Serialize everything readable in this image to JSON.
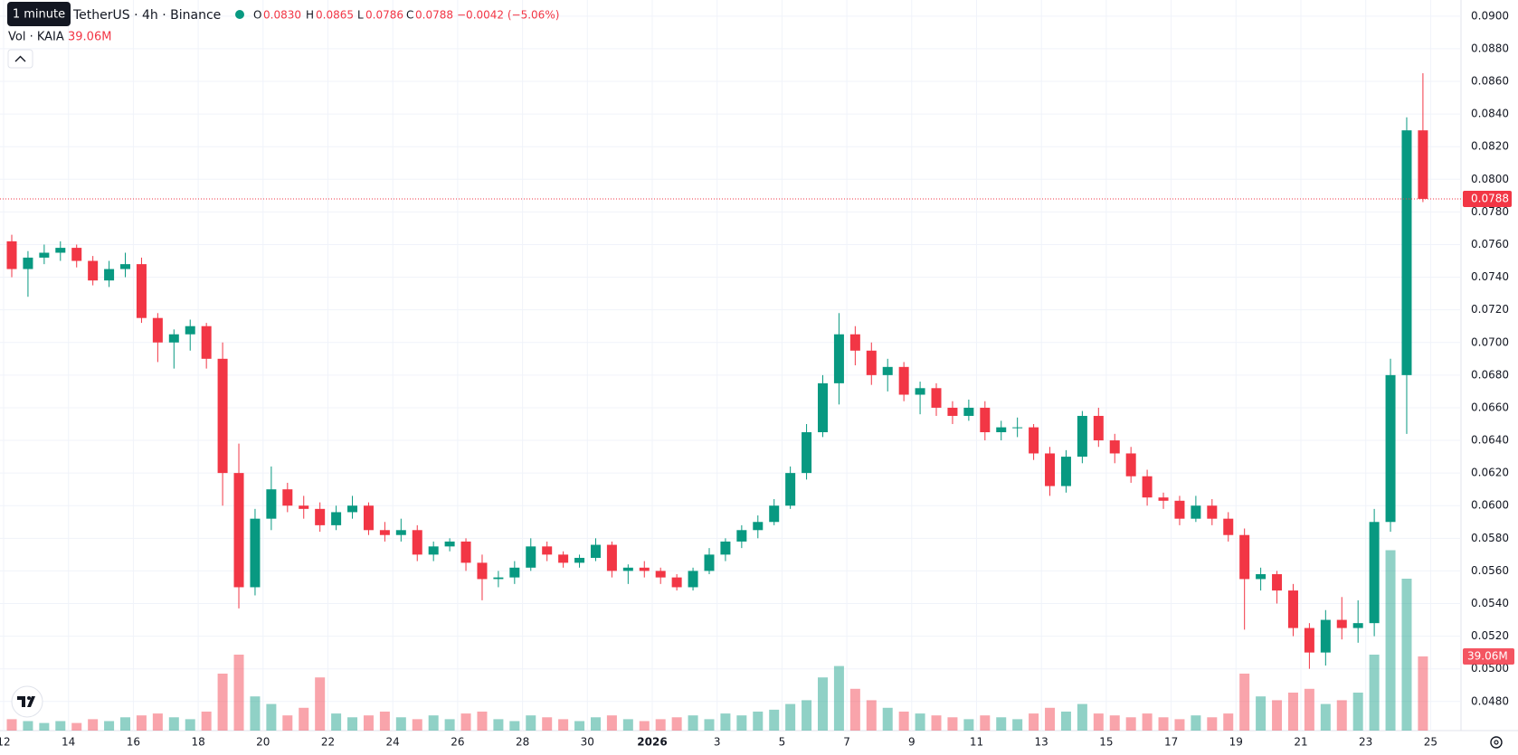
{
  "chart_data": {
    "type": "candlestick",
    "symbol": "TetherUS · 4h · Binance",
    "tooltip": "1 minute",
    "legend": {
      "o_label": "O",
      "open": "0.0830",
      "h_label": "H",
      "high": "0.0865",
      "l_label": "L",
      "low": "0.0786",
      "c_label": "C",
      "close": "0.0788",
      "change": "−0.0042 (−5.06%)"
    },
    "volume_title": "Vol · KAIA",
    "volume_last_label": "39.06M",
    "up_color": "#089981",
    "down_color": "#f23645",
    "ylim": [
      0.0476,
      0.0906
    ],
    "yticks": [
      {
        "value": 0.09,
        "label": "0.0900"
      },
      {
        "value": 0.088,
        "label": "0.0880"
      },
      {
        "value": 0.086,
        "label": "0.0860"
      },
      {
        "value": 0.084,
        "label": "0.0840"
      },
      {
        "value": 0.082,
        "label": "0.0820"
      },
      {
        "value": 0.08,
        "label": "0.0800"
      },
      {
        "value": 0.078,
        "label": "0.0780"
      },
      {
        "value": 0.076,
        "label": "0.0760"
      },
      {
        "value": 0.074,
        "label": "0.0740"
      },
      {
        "value": 0.072,
        "label": "0.0720"
      },
      {
        "value": 0.07,
        "label": "0.0700"
      },
      {
        "value": 0.068,
        "label": "0.0680"
      },
      {
        "value": 0.066,
        "label": "0.0660"
      },
      {
        "value": 0.064,
        "label": "0.0640"
      },
      {
        "value": 0.062,
        "label": "0.0620"
      },
      {
        "value": 0.06,
        "label": "0.0600"
      },
      {
        "value": 0.058,
        "label": "0.0580"
      },
      {
        "value": 0.056,
        "label": "0.0560"
      },
      {
        "value": 0.054,
        "label": "0.0540"
      },
      {
        "value": 0.052,
        "label": "0.0520"
      },
      {
        "value": 0.05,
        "label": "0.0500"
      },
      {
        "value": 0.048,
        "label": "0.0480"
      }
    ],
    "xticks": [
      {
        "value": "2025-12-12",
        "label": "12"
      },
      {
        "value": "2025-12-14",
        "label": "14"
      },
      {
        "value": "2025-12-16",
        "label": "16"
      },
      {
        "value": "2025-12-18",
        "label": "18"
      },
      {
        "value": "2025-12-20",
        "label": "20"
      },
      {
        "value": "2025-12-22",
        "label": "22"
      },
      {
        "value": "2025-12-24",
        "label": "24"
      },
      {
        "value": "2025-12-26",
        "label": "26"
      },
      {
        "value": "2025-12-28",
        "label": "28"
      },
      {
        "value": "2025-12-30",
        "label": "30"
      },
      {
        "value": "2026-01-01",
        "label": "2026"
      },
      {
        "value": "2026-01-03",
        "label": "3"
      },
      {
        "value": "2026-01-05",
        "label": "5"
      },
      {
        "value": "2026-01-07",
        "label": "7"
      },
      {
        "value": "2026-01-09",
        "label": "9"
      },
      {
        "value": "2026-01-11",
        "label": "11"
      },
      {
        "value": "2026-01-13",
        "label": "13"
      },
      {
        "value": "2026-01-15",
        "label": "15"
      },
      {
        "value": "2026-01-17",
        "label": "17"
      },
      {
        "value": "2026-01-19",
        "label": "19"
      },
      {
        "value": "2026-01-21",
        "label": "21"
      },
      {
        "value": "2026-01-23",
        "label": "23"
      },
      {
        "value": "2026-01-25",
        "label": "25"
      }
    ],
    "grid": true,
    "candles": [
      [
        0.0762,
        0.0766,
        0.074,
        0.0745
      ],
      [
        0.0745,
        0.0756,
        0.0728,
        0.0752
      ],
      [
        0.0752,
        0.076,
        0.0748,
        0.0755
      ],
      [
        0.0755,
        0.0762,
        0.075,
        0.0758
      ],
      [
        0.0758,
        0.076,
        0.0746,
        0.075
      ],
      [
        0.075,
        0.0753,
        0.0735,
        0.0738
      ],
      [
        0.0738,
        0.075,
        0.0734,
        0.0745
      ],
      [
        0.0745,
        0.0755,
        0.074,
        0.0748
      ],
      [
        0.0748,
        0.0752,
        0.0712,
        0.0715
      ],
      [
        0.0715,
        0.0718,
        0.0688,
        0.07
      ],
      [
        0.07,
        0.0708,
        0.0684,
        0.0705
      ],
      [
        0.0705,
        0.0714,
        0.0695,
        0.071
      ],
      [
        0.071,
        0.0712,
        0.0684,
        0.069
      ],
      [
        0.069,
        0.07,
        0.06,
        0.062
      ],
      [
        0.062,
        0.0638,
        0.0537,
        0.055
      ],
      [
        0.055,
        0.0598,
        0.0545,
        0.0592
      ],
      [
        0.0592,
        0.0624,
        0.0585,
        0.061
      ],
      [
        0.061,
        0.0614,
        0.0596,
        0.06
      ],
      [
        0.06,
        0.0606,
        0.0592,
        0.0598
      ],
      [
        0.0598,
        0.0602,
        0.0584,
        0.0588
      ],
      [
        0.0588,
        0.06,
        0.0585,
        0.0596
      ],
      [
        0.0596,
        0.0606,
        0.0592,
        0.06
      ],
      [
        0.06,
        0.0602,
        0.0582,
        0.0585
      ],
      [
        0.0585,
        0.059,
        0.0578,
        0.0582
      ],
      [
        0.0582,
        0.0592,
        0.0578,
        0.0585
      ],
      [
        0.0585,
        0.0588,
        0.0566,
        0.057
      ],
      [
        0.057,
        0.0578,
        0.0566,
        0.0575
      ],
      [
        0.0575,
        0.058,
        0.0572,
        0.0578
      ],
      [
        0.0578,
        0.058,
        0.056,
        0.0565
      ],
      [
        0.0565,
        0.057,
        0.0542,
        0.0555
      ],
      [
        0.0555,
        0.056,
        0.055,
        0.0556
      ],
      [
        0.0556,
        0.0566,
        0.0552,
        0.0562
      ],
      [
        0.0562,
        0.058,
        0.056,
        0.0575
      ],
      [
        0.0575,
        0.0578,
        0.0566,
        0.057
      ],
      [
        0.057,
        0.0572,
        0.0562,
        0.0565
      ],
      [
        0.0565,
        0.057,
        0.0562,
        0.0568
      ],
      [
        0.0568,
        0.058,
        0.0566,
        0.0576
      ],
      [
        0.0576,
        0.0578,
        0.0556,
        0.056
      ],
      [
        0.056,
        0.0564,
        0.0552,
        0.0562
      ],
      [
        0.0562,
        0.0566,
        0.0556,
        0.056
      ],
      [
        0.056,
        0.0562,
        0.0552,
        0.0556
      ],
      [
        0.0556,
        0.0558,
        0.0548,
        0.055
      ],
      [
        0.055,
        0.0562,
        0.0548,
        0.056
      ],
      [
        0.056,
        0.0574,
        0.0558,
        0.057
      ],
      [
        0.057,
        0.058,
        0.0566,
        0.0578
      ],
      [
        0.0578,
        0.0588,
        0.0574,
        0.0585
      ],
      [
        0.0585,
        0.0594,
        0.058,
        0.059
      ],
      [
        0.059,
        0.0604,
        0.0588,
        0.06
      ],
      [
        0.06,
        0.0624,
        0.0598,
        0.062
      ],
      [
        0.062,
        0.065,
        0.0616,
        0.0645
      ],
      [
        0.0645,
        0.068,
        0.0642,
        0.0675
      ],
      [
        0.0675,
        0.0718,
        0.0662,
        0.0705
      ],
      [
        0.0705,
        0.071,
        0.0686,
        0.0695
      ],
      [
        0.0695,
        0.07,
        0.0674,
        0.068
      ],
      [
        0.068,
        0.069,
        0.067,
        0.0685
      ],
      [
        0.0685,
        0.0688,
        0.0664,
        0.0668
      ],
      [
        0.0668,
        0.0676,
        0.0656,
        0.0672
      ],
      [
        0.0672,
        0.0675,
        0.0655,
        0.066
      ],
      [
        0.066,
        0.0664,
        0.065,
        0.0655
      ],
      [
        0.0655,
        0.0665,
        0.0652,
        0.066
      ],
      [
        0.066,
        0.0664,
        0.064,
        0.0645
      ],
      [
        0.0645,
        0.0652,
        0.064,
        0.0648
      ],
      [
        0.0648,
        0.0654,
        0.0642,
        0.0648
      ],
      [
        0.0648,
        0.065,
        0.0628,
        0.0632
      ],
      [
        0.0632,
        0.0636,
        0.0606,
        0.0612
      ],
      [
        0.0612,
        0.0634,
        0.0608,
        0.063
      ],
      [
        0.063,
        0.0658,
        0.0626,
        0.0655
      ],
      [
        0.0655,
        0.066,
        0.0636,
        0.064
      ],
      [
        0.064,
        0.0644,
        0.0626,
        0.0632
      ],
      [
        0.0632,
        0.0636,
        0.0614,
        0.0618
      ],
      [
        0.0618,
        0.0622,
        0.06,
        0.0605
      ],
      [
        0.0605,
        0.0608,
        0.0598,
        0.0603
      ],
      [
        0.0603,
        0.0606,
        0.0588,
        0.0592
      ],
      [
        0.0592,
        0.0606,
        0.059,
        0.06
      ],
      [
        0.06,
        0.0604,
        0.0588,
        0.0592
      ],
      [
        0.0592,
        0.0596,
        0.0578,
        0.0582
      ],
      [
        0.0582,
        0.0586,
        0.0524,
        0.0555
      ],
      [
        0.0555,
        0.0562,
        0.0548,
        0.0558
      ],
      [
        0.0558,
        0.056,
        0.054,
        0.0548
      ],
      [
        0.0548,
        0.0552,
        0.052,
        0.0525
      ],
      [
        0.0525,
        0.0528,
        0.05,
        0.051
      ],
      [
        0.051,
        0.0536,
        0.0502,
        0.053
      ],
      [
        0.053,
        0.0544,
        0.0518,
        0.0525
      ],
      [
        0.0525,
        0.0542,
        0.0516,
        0.0528
      ],
      [
        0.0528,
        0.0598,
        0.052,
        0.059
      ],
      [
        0.059,
        0.069,
        0.0584,
        0.068
      ],
      [
        0.068,
        0.0838,
        0.0644,
        0.083
      ],
      [
        0.083,
        0.0865,
        0.0786,
        0.0788
      ]
    ],
    "volumes": [
      6,
      5,
      4,
      5,
      4,
      6,
      5,
      7,
      8,
      9,
      7,
      6,
      10,
      30,
      40,
      18,
      14,
      8,
      12,
      28,
      9,
      7,
      8,
      10,
      7,
      6,
      8,
      6,
      9,
      10,
      6,
      5,
      8,
      7,
      6,
      5,
      7,
      8,
      6,
      5,
      6,
      7,
      8,
      6,
      9,
      8,
      10,
      11,
      14,
      16,
      28,
      34,
      22,
      16,
      12,
      10,
      9,
      8,
      7,
      6,
      8,
      7,
      6,
      9,
      12,
      10,
      14,
      9,
      8,
      7,
      9,
      7,
      6,
      8,
      7,
      9,
      30,
      18,
      16,
      20,
      22,
      14,
      16,
      20,
      40,
      95,
      80,
      39.06
    ]
  }
}
